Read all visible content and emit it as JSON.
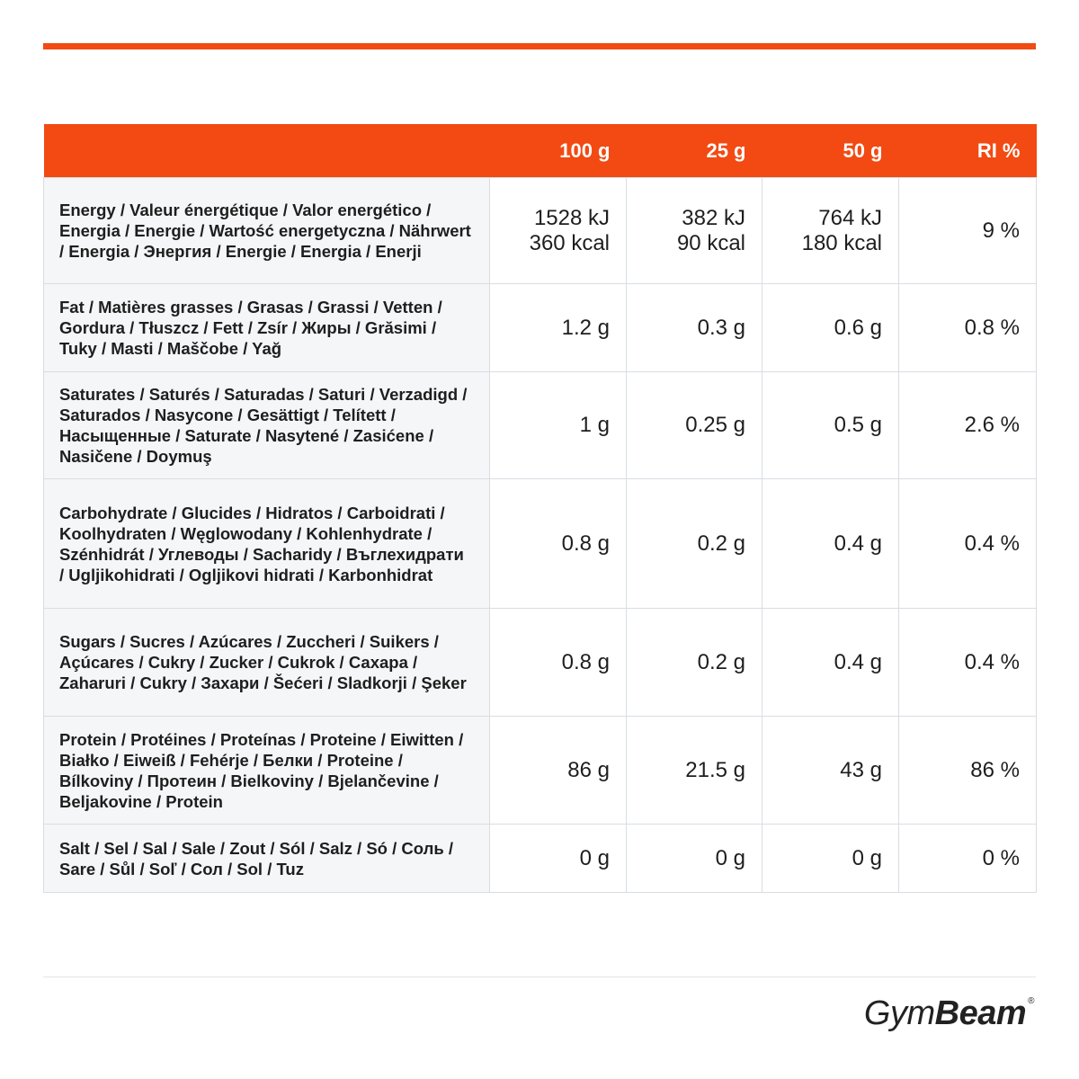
{
  "table": {
    "headers": [
      "",
      "100 g",
      "25 g",
      "50 g",
      "RI %"
    ],
    "rows": [
      {
        "label": "Energy / Valeur énergétique / Valor energético / Energia / Energie / Wartość energetyczna / Nährwert / Energia / Энергия / Energie / Energia / Enerji",
        "v100": [
          "1528 kJ",
          "360 kcal"
        ],
        "v25": [
          "382 kJ",
          "90 kcal"
        ],
        "v50": [
          "764 kJ",
          "180 kcal"
        ],
        "ri": "9 %"
      },
      {
        "label": "Fat / Matières grasses / Grasas / Grassi / Vetten / Gordura / Tłuszcz / Fett / Zsír / Жиры / Grăsimi / Tuky / Masti / Maščobe / Yağ",
        "v100": "1.2 g",
        "v25": "0.3 g",
        "v50": "0.6 g",
        "ri": "0.8 %"
      },
      {
        "label": "Saturates / Saturés / Saturadas / Saturi / Verzadigd / Saturados / Nasycone / Gesättigt / Telített / Насыщенные / Saturate / Nasytené / Zasićene / Nasičene / Doymuş",
        "v100": "1 g",
        "v25": "0.25 g",
        "v50": "0.5 g",
        "ri": "2.6 %"
      },
      {
        "label": "Carbohydrate / Glucides / Hidratos / Carboidrati / Koolhydraten / Węglowodany / Kohlenhydrate / Szénhidrát / Углеводы / Sacharidy / Въглехидрати / Ugljikohidrati / Ogljikovi hidrati / Karbonhidrat",
        "v100": "0.8 g",
        "v25": "0.2 g",
        "v50": "0.4 g",
        "ri": "0.4 %"
      },
      {
        "label": "Sugars / Sucres / Azúcares / Zuccheri / Suikers / Açúcares / Cukry / Zucker / Cukrok / Сахара / Zaharuri / Cukry / Захари / Šećeri / Sladkorji / Şeker",
        "v100": "0.8 g",
        "v25": "0.2 g",
        "v50": "0.4 g",
        "ri": "0.4 %"
      },
      {
        "label": "Protein / Protéines / Proteínas / Proteine / Eiwitten / Białko / Eiweiß / Fehérje / Белки / Proteine / Bílkoviny / Протеин / Bielkoviny / Bjelančevine / Beljakovine / Protein",
        "v100": "86 g",
        "v25": "21.5 g",
        "v50": "43 g",
        "ri": "86 %"
      },
      {
        "label": "Salt / Sel / Sal / Sale / Zout / Sól / Salz / Só / Соль / Sare / Sůl / Soľ / Сол / Sol / Tuz",
        "v100": "0 g",
        "v25": "0 g",
        "v50": "0 g",
        "ri": "0 %"
      }
    ]
  },
  "brand": {
    "name_light": "Gym",
    "name_bold": "Beam",
    "registered": "®"
  },
  "colors": {
    "accent": "#f24a12",
    "label_bg": "#f5f6f8",
    "border": "#d9dde2",
    "text": "#1e1e1e"
  }
}
